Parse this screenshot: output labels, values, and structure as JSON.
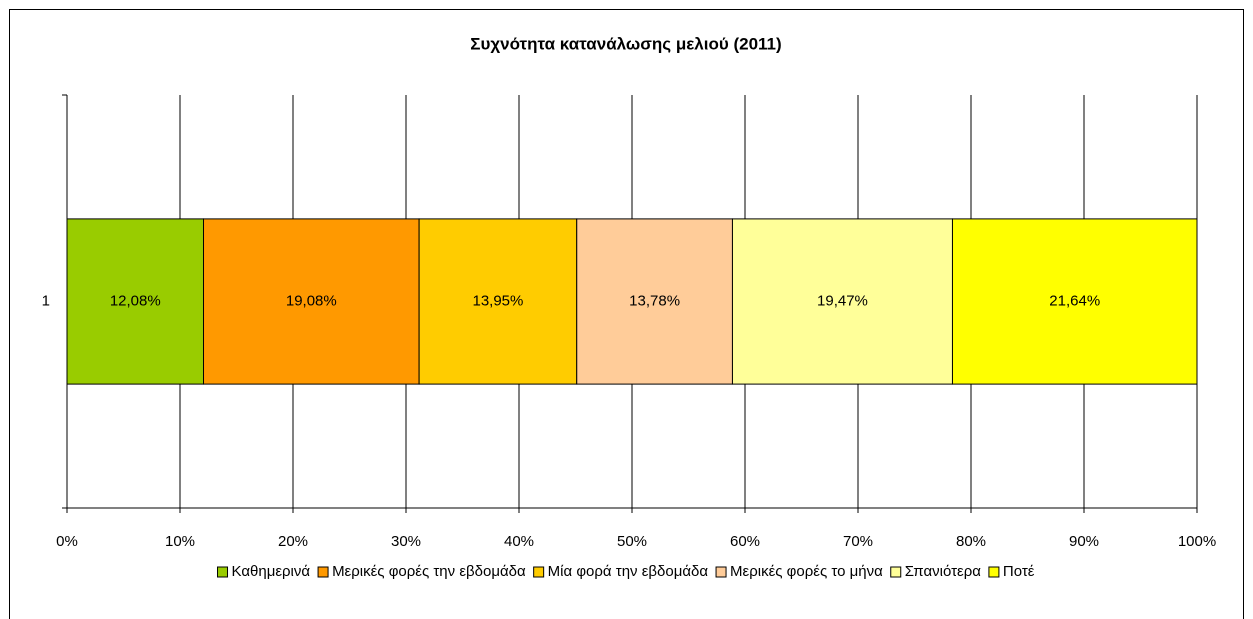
{
  "chart_data": {
    "type": "stacked-barh",
    "title": "Συχνότητα κατανάλωσης μελιού (2011)",
    "categories": [
      "1"
    ],
    "series": [
      {
        "name": "Καθημερινά",
        "color": "#99cc00",
        "values": [
          12.08
        ],
        "value_labels": [
          "12,08%"
        ]
      },
      {
        "name": "Μερικές φορές την εβδομάδα",
        "color": "#ff9900",
        "values": [
          19.08
        ],
        "value_labels": [
          "19,08%"
        ]
      },
      {
        "name": "Μία φορά την εβδομάδα",
        "color": "#ffcc00",
        "values": [
          13.95
        ],
        "value_labels": [
          "13,95%"
        ]
      },
      {
        "name": "Μερικές φορές το μήνα",
        "color": "#ffcc99",
        "values": [
          13.78
        ],
        "value_labels": [
          "13,78%"
        ]
      },
      {
        "name": "Σπανιότερα",
        "color": "#ffff99",
        "values": [
          19.47
        ],
        "value_labels": [
          "19,47%"
        ]
      },
      {
        "name": "Ποτέ",
        "color": "#ffff00",
        "values": [
          21.64
        ],
        "value_labels": [
          "21,64%"
        ]
      }
    ],
    "xlim": [
      0,
      100
    ],
    "xticks": [
      {
        "value": 0,
        "label": "0%"
      },
      {
        "value": 10,
        "label": "10%"
      },
      {
        "value": 20,
        "label": "20%"
      },
      {
        "value": 30,
        "label": "30%"
      },
      {
        "value": 40,
        "label": "40%"
      },
      {
        "value": 50,
        "label": "50%"
      },
      {
        "value": 60,
        "label": "60%"
      },
      {
        "value": 70,
        "label": "70%"
      },
      {
        "value": 80,
        "label": "80%"
      },
      {
        "value": 90,
        "label": "90%"
      },
      {
        "value": 100,
        "label": "100%"
      }
    ],
    "grid": true,
    "legend": "bottom"
  }
}
